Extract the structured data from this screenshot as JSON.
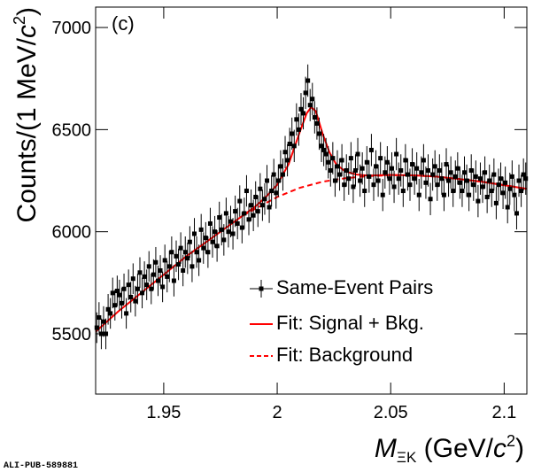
{
  "chart_data": {
    "type": "scatter",
    "annotation": "(c)",
    "footer": "ALI-PUB-589881",
    "xlabel": [
      "M",
      "ΞK",
      " (GeV/",
      "c",
      "2",
      ")"
    ],
    "ylabel": [
      "Counts/(1 MeV/",
      "c",
      "2",
      ")"
    ],
    "xlim": [
      1.92,
      2.11
    ],
    "ylim": [
      5205,
      7100
    ],
    "xticks": [
      1.95,
      2,
      2.05,
      2.1
    ],
    "yticks": [
      5500,
      6000,
      6500,
      7000
    ],
    "legend": "lower right",
    "series": [
      {
        "name": "Same-Event Pairs",
        "color": "#000000",
        "style": "markers",
        "x": [
          1.9205,
          1.9215,
          1.9225,
          1.9235,
          1.9245,
          1.9255,
          1.9265,
          1.9275,
          1.9285,
          1.9295,
          1.9305,
          1.9315,
          1.9325,
          1.9335,
          1.9345,
          1.9355,
          1.9365,
          1.9375,
          1.9385,
          1.9395,
          1.9405,
          1.9415,
          1.9425,
          1.9435,
          1.9445,
          1.9455,
          1.9465,
          1.9475,
          1.9485,
          1.9495,
          1.9505,
          1.9515,
          1.9525,
          1.9535,
          1.9545,
          1.9555,
          1.9565,
          1.9575,
          1.9585,
          1.9595,
          1.9605,
          1.9615,
          1.9625,
          1.9635,
          1.9645,
          1.9655,
          1.9665,
          1.9675,
          1.9685,
          1.9695,
          1.9705,
          1.9715,
          1.9725,
          1.9735,
          1.9745,
          1.9755,
          1.9765,
          1.9775,
          1.9785,
          1.9795,
          1.9805,
          1.9815,
          1.9825,
          1.9835,
          1.9845,
          1.9855,
          1.9865,
          1.9875,
          1.9885,
          1.9895,
          1.9905,
          1.9915,
          1.9925,
          1.9935,
          1.9945,
          1.9955,
          1.9965,
          1.9975,
          1.9985,
          1.9995,
          2.0005,
          2.0015,
          2.0025,
          2.0035,
          2.0045,
          2.0055,
          2.0065,
          2.0075,
          2.0085,
          2.0095,
          2.0105,
          2.0115,
          2.0125,
          2.0135,
          2.0145,
          2.0155,
          2.0165,
          2.0175,
          2.0185,
          2.0195,
          2.0205,
          2.0215,
          2.0225,
          2.0235,
          2.0245,
          2.0255,
          2.0265,
          2.0275,
          2.0285,
          2.0295,
          2.0305,
          2.0315,
          2.0325,
          2.0335,
          2.0345,
          2.0355,
          2.0365,
          2.0375,
          2.0385,
          2.0395,
          2.0405,
          2.0415,
          2.0425,
          2.0435,
          2.0445,
          2.0455,
          2.0465,
          2.0475,
          2.0485,
          2.0495,
          2.0505,
          2.0515,
          2.0525,
          2.0535,
          2.0545,
          2.0555,
          2.0565,
          2.0575,
          2.0585,
          2.0595,
          2.0605,
          2.0615,
          2.0625,
          2.0635,
          2.0645,
          2.0655,
          2.0665,
          2.0675,
          2.0685,
          2.0695,
          2.0705,
          2.0715,
          2.0725,
          2.0735,
          2.0745,
          2.0755,
          2.0765,
          2.0775,
          2.0785,
          2.0795,
          2.0805,
          2.0815,
          2.0825,
          2.0835,
          2.0845,
          2.0855,
          2.0865,
          2.0875,
          2.0885,
          2.0895,
          2.0905,
          2.0915,
          2.0925,
          2.0935,
          2.0945,
          2.0955,
          2.0965,
          2.0975,
          2.0985,
          2.0995,
          2.1005,
          2.1015,
          2.1025,
          2.1035,
          2.1045,
          2.1055,
          2.1065,
          2.1075,
          2.1085,
          2.1095
        ],
        "values": [
          5530,
          5580,
          5500,
          5560,
          5500,
          5620,
          5600,
          5700,
          5640,
          5710,
          5690,
          5650,
          5720,
          5600,
          5740,
          5680,
          5770,
          5660,
          5720,
          5800,
          5700,
          5780,
          5740,
          5830,
          5720,
          5790,
          5850,
          5760,
          5810,
          5730,
          5860,
          5780,
          5830,
          5900,
          5760,
          5880,
          5840,
          5920,
          5810,
          5900,
          5870,
          5950,
          5830,
          5990,
          5900,
          5860,
          6010,
          5920,
          5970,
          5900,
          6040,
          5950,
          6000,
          5930,
          6070,
          6010,
          5960,
          6090,
          6000,
          6050,
          5990,
          6100,
          6040,
          6150,
          6020,
          6090,
          6200,
          6060,
          6130,
          6080,
          6170,
          6100,
          6210,
          6130,
          6160,
          6250,
          6120,
          6200,
          6280,
          6190,
          6250,
          6320,
          6280,
          6390,
          6350,
          6430,
          6480,
          6420,
          6550,
          6500,
          6600,
          6580,
          6680,
          6740,
          6620,
          6650,
          6560,
          6530,
          6480,
          6420,
          6400,
          6380,
          6340,
          6300,
          6360,
          6250,
          6320,
          6280,
          6350,
          6230,
          6300,
          6260,
          6360,
          6220,
          6300,
          6380,
          6250,
          6310,
          6200,
          6340,
          6270,
          6400,
          6230,
          6320,
          6250,
          6360,
          6180,
          6290,
          6340,
          6260,
          6310,
          6220,
          6380,
          6260,
          6300,
          6200,
          6350,
          6280,
          6230,
          6330,
          6260,
          6310,
          6180,
          6290,
          6350,
          6240,
          6300,
          6160,
          6280,
          6320,
          6230,
          6300,
          6260,
          6180,
          6330,
          6250,
          6290,
          6200,
          6270,
          6310,
          6240,
          6200,
          6290,
          6250,
          6180,
          6300,
          6230,
          6270,
          6150,
          6260,
          6220,
          6290,
          6170,
          6250,
          6200,
          6280,
          6140,
          6230,
          6260,
          6190,
          6240,
          6120,
          6210,
          6270,
          6180,
          6090,
          6250,
          6200,
          6280,
          6260
        ],
        "errors": [
          75,
          75,
          75,
          75,
          75,
          75,
          75,
          75,
          75,
          75,
          75,
          75,
          75,
          75,
          75,
          75,
          75,
          75,
          75,
          75,
          75,
          75,
          75,
          75,
          75,
          75,
          75,
          75,
          75,
          75,
          77,
          77,
          77,
          77,
          77,
          77,
          77,
          77,
          77,
          77,
          77,
          77,
          77,
          77,
          77,
          77,
          77,
          77,
          77,
          77,
          77,
          77,
          77,
          77,
          77,
          77,
          77,
          77,
          77,
          77,
          77,
          77,
          77,
          77,
          77,
          77,
          77,
          77,
          77,
          77,
          77,
          77,
          77,
          77,
          77,
          77,
          77,
          77,
          77,
          77,
          79,
          79,
          79,
          79,
          79,
          79,
          79,
          79,
          79,
          79,
          79,
          79,
          79,
          79,
          79,
          79,
          79,
          79,
          79,
          79,
          79,
          79,
          79,
          79,
          79,
          79,
          79,
          79,
          79,
          79,
          79,
          79,
          79,
          79,
          79,
          79,
          79,
          79,
          79,
          79,
          79,
          79,
          79,
          79,
          79,
          79,
          79,
          79,
          79,
          79,
          79,
          79,
          79,
          79,
          79,
          79,
          79,
          79,
          79,
          79,
          79,
          79,
          79,
          79,
          79,
          79,
          79,
          79,
          79,
          79,
          79,
          79,
          79,
          79,
          79,
          79,
          79,
          79,
          79,
          79,
          79,
          79,
          79,
          79,
          79,
          79,
          79,
          79,
          79,
          79,
          79,
          79,
          79,
          79,
          79,
          79,
          79,
          79,
          79,
          79,
          79,
          79,
          79,
          79,
          79,
          79,
          79,
          79,
          79,
          79
        ]
      },
      {
        "name": "Fit: Signal + Bkg.",
        "color": "#ff0000",
        "style": "line",
        "x": [
          1.92,
          1.93,
          1.94,
          1.95,
          1.96,
          1.97,
          1.98,
          1.99,
          1.995,
          2.0,
          2.005,
          2.01,
          2.013,
          2.015,
          2.017,
          2.02,
          2.023,
          2.026,
          2.03,
          2.035,
          2.04,
          2.05,
          2.06,
          2.07,
          2.08,
          2.09,
          2.1,
          2.11
        ],
        "values": [
          5510,
          5610,
          5700,
          5790,
          5880,
          5960,
          6040,
          6120,
          6170,
          6230,
          6330,
          6490,
          6580,
          6610,
          6590,
          6480,
          6390,
          6330,
          6295,
          6280,
          6275,
          6278,
          6276,
          6270,
          6258,
          6245,
          6228,
          6210
        ]
      },
      {
        "name": "Fit: Background",
        "color": "#ff0000",
        "style": "dashed",
        "x": [
          1.985,
          1.99,
          2.0,
          2.01,
          2.02,
          2.03,
          2.04,
          2.05,
          2.06,
          2.07,
          2.08,
          2.09,
          2.1,
          2.11
        ],
        "values": [
          6080,
          6110,
          6170,
          6215,
          6245,
          6262,
          6272,
          6277,
          6276,
          6270,
          6258,
          6245,
          6228,
          6210
        ]
      }
    ]
  }
}
